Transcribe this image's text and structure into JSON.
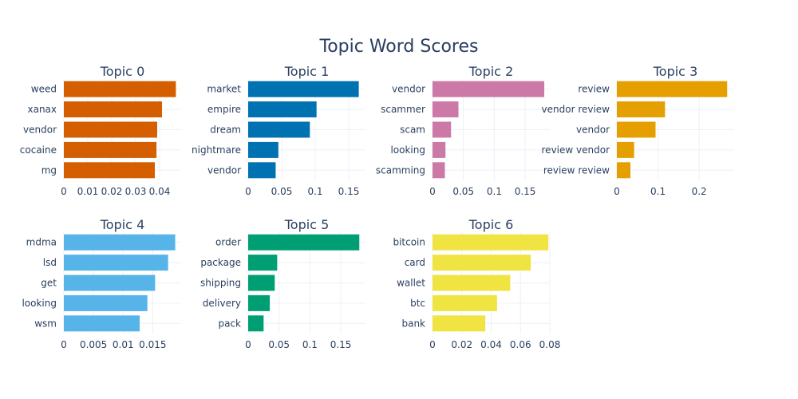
{
  "figure": {
    "title": "Topic Word Scores"
  },
  "chart_data": [
    {
      "type": "bar",
      "orientation": "horizontal",
      "title": "Topic 0",
      "color": "#D55E00",
      "categories": [
        "weed",
        "xanax",
        "vendor",
        "cocaine",
        "mg"
      ],
      "values": [
        0.0468,
        0.041,
        0.039,
        0.0387,
        0.038
      ],
      "xlim": [
        0,
        0.049
      ],
      "xticks": [
        0,
        0.01,
        0.02,
        0.03,
        0.04
      ],
      "xtick_labels": [
        "0",
        "0.01",
        "0.02",
        "0.03",
        "0.04"
      ],
      "grid": true
    },
    {
      "type": "bar",
      "orientation": "horizontal",
      "title": "Topic 1",
      "color": "#0072B2",
      "categories": [
        "market",
        "empire",
        "dream",
        "nightmare",
        "vendor"
      ],
      "values": [
        0.165,
        0.102,
        0.092,
        0.045,
        0.041
      ],
      "xlim": [
        0,
        0.175
      ],
      "xticks": [
        0,
        0.05,
        0.1,
        0.15
      ],
      "xtick_labels": [
        "0",
        "0.05",
        "0.1",
        "0.15"
      ],
      "grid": true
    },
    {
      "type": "bar",
      "orientation": "horizontal",
      "title": "Topic 2",
      "color": "#CC79A7",
      "categories": [
        "vendor",
        "scammer",
        "scam",
        "looking",
        "scamming"
      ],
      "values": [
        0.181,
        0.042,
        0.03,
        0.021,
        0.02
      ],
      "xlim": [
        0,
        0.19
      ],
      "xticks": [
        0,
        0.05,
        0.1,
        0.15
      ],
      "xtick_labels": [
        "0",
        "0.05",
        "0.1",
        "0.15"
      ],
      "grid": true
    },
    {
      "type": "bar",
      "orientation": "horizontal",
      "title": "Topic 3",
      "color": "#E69F00",
      "categories": [
        "review",
        "vendor review",
        "vendor",
        "review vendor",
        "review review"
      ],
      "values": [
        0.268,
        0.117,
        0.094,
        0.042,
        0.033
      ],
      "xlim": [
        0,
        0.285
      ],
      "xticks": [
        0,
        0.1,
        0.2
      ],
      "xtick_labels": [
        "0",
        "0.1",
        "0.2"
      ],
      "grid": true
    },
    {
      "type": "bar",
      "orientation": "horizontal",
      "title": "Topic 4",
      "color": "#56B4E9",
      "categories": [
        "mdma",
        "lsd",
        "get",
        "looking",
        "wsm"
      ],
      "values": [
        0.0188,
        0.0176,
        0.0154,
        0.0141,
        0.0128
      ],
      "xlim": [
        0,
        0.0198
      ],
      "xticks": [
        0,
        0.005,
        0.01,
        0.015
      ],
      "xtick_labels": [
        "0",
        "0.005",
        "0.01",
        "0.015"
      ],
      "grid": true
    },
    {
      "type": "bar",
      "orientation": "horizontal",
      "title": "Topic 5",
      "color": "#009E73",
      "categories": [
        "order",
        "package",
        "shipping",
        "delivery",
        "pack"
      ],
      "values": [
        0.18,
        0.047,
        0.043,
        0.035,
        0.025
      ],
      "xlim": [
        0,
        0.19
      ],
      "xticks": [
        0,
        0.05,
        0.1,
        0.15
      ],
      "xtick_labels": [
        "0",
        "0.05",
        "0.1",
        "0.15"
      ],
      "grid": true
    },
    {
      "type": "bar",
      "orientation": "horizontal",
      "title": "Topic 6",
      "color": "#F0E442",
      "categories": [
        "bitcoin",
        "card",
        "wallet",
        "btc",
        "bank"
      ],
      "values": [
        0.079,
        0.067,
        0.053,
        0.044,
        0.036
      ],
      "xlim": [
        0,
        0.08
      ],
      "xticks": [
        0,
        0.02,
        0.04,
        0.06,
        0.08
      ],
      "xtick_labels": [
        "0",
        "0.02",
        "0.04",
        "0.06",
        "0.08"
      ],
      "grid": true
    }
  ]
}
